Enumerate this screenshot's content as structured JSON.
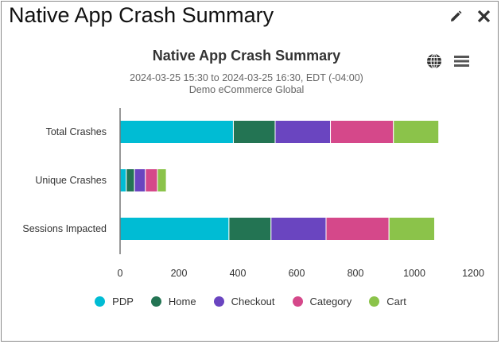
{
  "window": {
    "title": "Native App Crash Summary",
    "edit_icon": "pencil-icon",
    "close_icon": "close-icon"
  },
  "chart_data": {
    "type": "bar",
    "orientation": "horizontal",
    "stacked": true,
    "title": "Native App Crash Summary",
    "subtitle": "2024-03-25 15:30 to 2024-03-25 16:30, EDT (-04:00)",
    "subtitle2": "Demo eCommerce Global",
    "categories": [
      "Total Crashes",
      "Unique Crashes",
      "Sessions Impacted"
    ],
    "series": [
      {
        "name": "PDP",
        "color": "#00bcd4",
        "values": [
          385,
          21,
          370
        ]
      },
      {
        "name": "Home",
        "color": "#237453",
        "values": [
          142,
          28,
          143
        ]
      },
      {
        "name": "Checkout",
        "color": "#6a45c0",
        "values": [
          188,
          37,
          187
        ]
      },
      {
        "name": "Category",
        "color": "#d5488a",
        "values": [
          214,
          41,
          214
        ]
      },
      {
        "name": "Cart",
        "color": "#8bc34a",
        "values": [
          154,
          30,
          155
        ]
      }
    ],
    "xlim": [
      0,
      1200
    ],
    "xticks": [
      "0",
      "200",
      "400",
      "600",
      "800",
      "1000",
      "1200"
    ],
    "xlabel": "",
    "ylabel": "",
    "grid": false,
    "legend": "bottom"
  }
}
